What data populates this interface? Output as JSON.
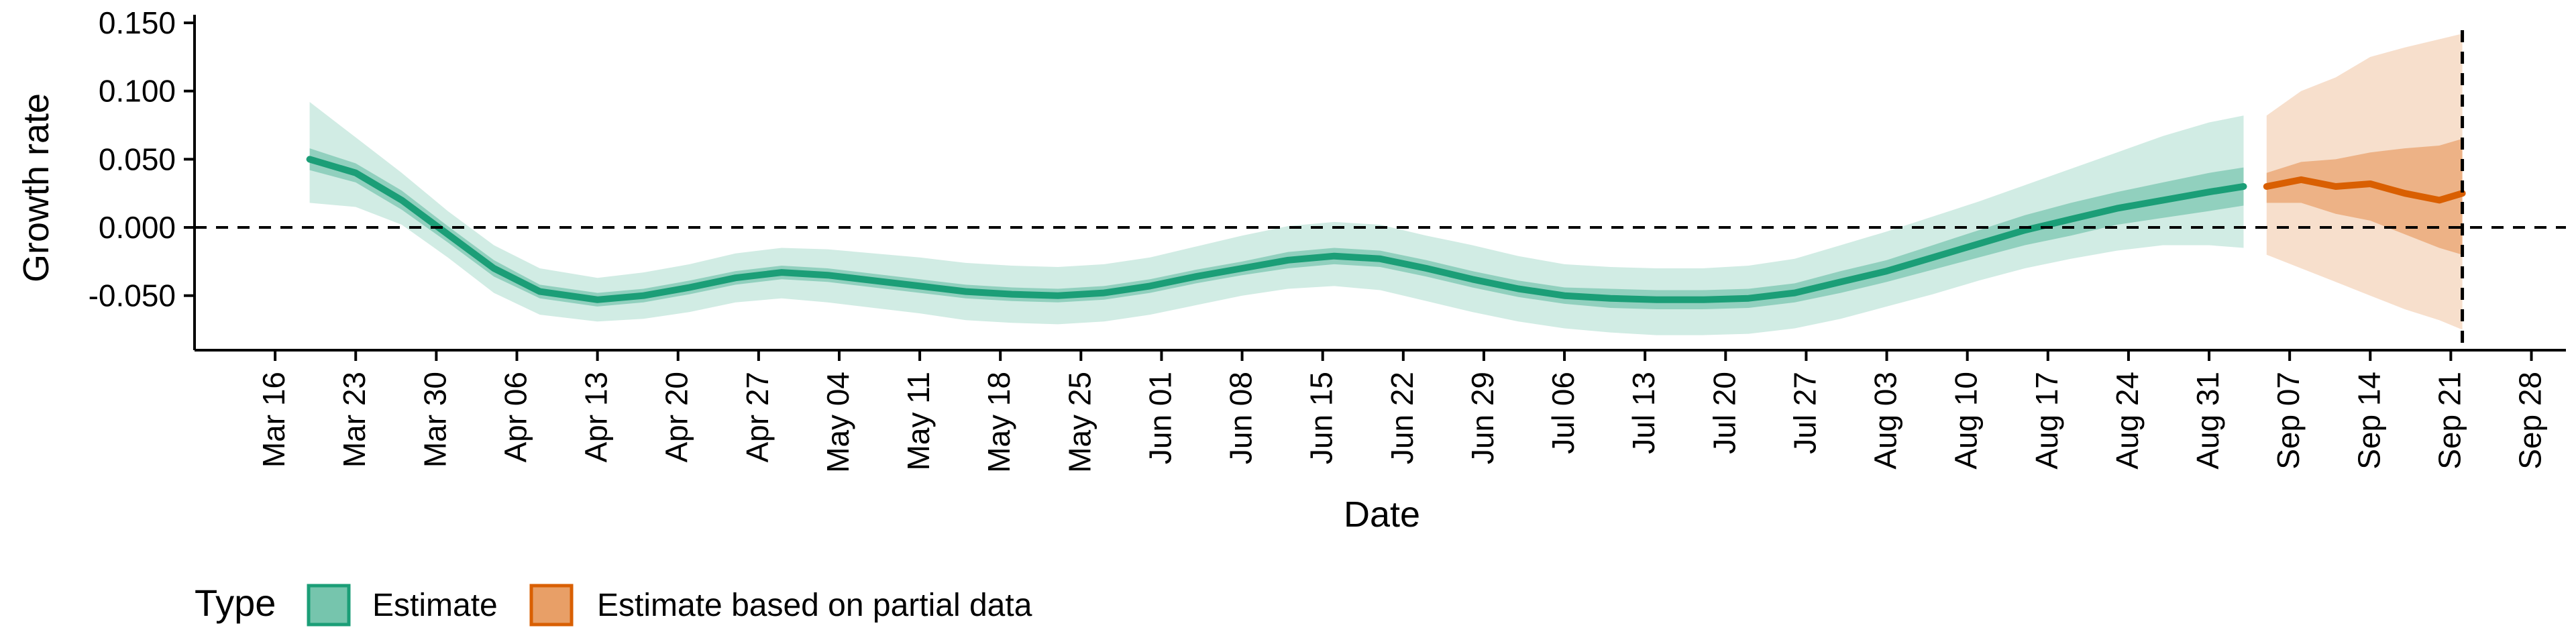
{
  "chart_data": {
    "type": "area",
    "xlabel": "Date",
    "ylabel": "Growth rate",
    "ylim": [
      -0.09,
      0.152
    ],
    "yticks": [
      -0.05,
      0.0,
      0.05,
      0.1,
      0.15
    ],
    "ytick_labels": [
      "-0.050",
      "0.000",
      "0.050",
      "0.100",
      "0.150"
    ],
    "xlim": [
      "2020-03-09",
      "2020-10-01"
    ],
    "xticks": [
      "2020-03-16",
      "2020-03-23",
      "2020-03-30",
      "2020-04-06",
      "2020-04-13",
      "2020-04-20",
      "2020-04-27",
      "2020-05-04",
      "2020-05-11",
      "2020-05-18",
      "2020-05-25",
      "2020-06-01",
      "2020-06-08",
      "2020-06-15",
      "2020-06-22",
      "2020-06-29",
      "2020-07-06",
      "2020-07-13",
      "2020-07-20",
      "2020-07-27",
      "2020-08-03",
      "2020-08-10",
      "2020-08-17",
      "2020-08-24",
      "2020-08-31",
      "2020-09-07",
      "2020-09-14",
      "2020-09-21",
      "2020-09-28"
    ],
    "xtick_labels": [
      "Mar 16",
      "Mar 23",
      "Mar 30",
      "Apr 06",
      "Apr 13",
      "Apr 20",
      "Apr 27",
      "May 04",
      "May 11",
      "May 18",
      "May 25",
      "Jun 01",
      "Jun 08",
      "Jun 15",
      "Jun 22",
      "Jun 29",
      "Jul 06",
      "Jul 13",
      "Jul 20",
      "Jul 27",
      "Aug 03",
      "Aug 10",
      "Aug 17",
      "Aug 24",
      "Aug 31",
      "Sep 07",
      "Sep 14",
      "Sep 21",
      "Sep 28"
    ],
    "reference_lines": {
      "horizontal_y": 0.0,
      "vertical_date": "2020-09-22"
    },
    "legend": {
      "title": "Type",
      "position": "bottom-left",
      "items": [
        {
          "label": "Estimate",
          "color": "#1b9e77"
        },
        {
          "label": "Estimate based on partial data",
          "color": "#d95f02"
        }
      ]
    },
    "series": [
      {
        "name": "Estimate",
        "color": "#1b9e77",
        "x": [
          "2020-03-19",
          "2020-03-23",
          "2020-03-27",
          "2020-03-31",
          "2020-04-04",
          "2020-04-08",
          "2020-04-13",
          "2020-04-17",
          "2020-04-21",
          "2020-04-25",
          "2020-04-29",
          "2020-05-03",
          "2020-05-07",
          "2020-05-11",
          "2020-05-15",
          "2020-05-19",
          "2020-05-23",
          "2020-05-27",
          "2020-05-31",
          "2020-06-04",
          "2020-06-08",
          "2020-06-12",
          "2020-06-16",
          "2020-06-20",
          "2020-06-24",
          "2020-06-28",
          "2020-07-02",
          "2020-07-06",
          "2020-07-10",
          "2020-07-14",
          "2020-07-18",
          "2020-07-22",
          "2020-07-26",
          "2020-07-30",
          "2020-08-03",
          "2020-08-07",
          "2020-08-11",
          "2020-08-15",
          "2020-08-19",
          "2020-08-23",
          "2020-08-27",
          "2020-08-31",
          "2020-09-03"
        ],
        "median": [
          0.05,
          0.04,
          0.02,
          -0.005,
          -0.03,
          -0.047,
          -0.053,
          -0.05,
          -0.044,
          -0.037,
          -0.033,
          -0.035,
          -0.039,
          -0.043,
          -0.047,
          -0.049,
          -0.05,
          -0.048,
          -0.043,
          -0.036,
          -0.03,
          -0.024,
          -0.021,
          -0.023,
          -0.03,
          -0.038,
          -0.045,
          -0.05,
          -0.052,
          -0.053,
          -0.053,
          -0.052,
          -0.048,
          -0.04,
          -0.032,
          -0.022,
          -0.012,
          -0.002,
          0.006,
          0.014,
          0.02,
          0.026,
          0.03
        ],
        "lower_50": [
          0.042,
          0.033,
          0.013,
          -0.011,
          -0.036,
          -0.052,
          -0.058,
          -0.055,
          -0.049,
          -0.042,
          -0.038,
          -0.04,
          -0.044,
          -0.048,
          -0.052,
          -0.054,
          -0.055,
          -0.053,
          -0.048,
          -0.041,
          -0.035,
          -0.03,
          -0.027,
          -0.029,
          -0.036,
          -0.044,
          -0.051,
          -0.056,
          -0.059,
          -0.06,
          -0.06,
          -0.059,
          -0.055,
          -0.048,
          -0.04,
          -0.031,
          -0.022,
          -0.013,
          -0.006,
          0.002,
          0.007,
          0.012,
          0.016
        ],
        "upper_50": [
          0.058,
          0.047,
          0.027,
          0.001,
          -0.024,
          -0.042,
          -0.048,
          -0.045,
          -0.039,
          -0.032,
          -0.028,
          -0.03,
          -0.034,
          -0.038,
          -0.042,
          -0.044,
          -0.045,
          -0.043,
          -0.038,
          -0.031,
          -0.025,
          -0.018,
          -0.015,
          -0.017,
          -0.024,
          -0.032,
          -0.039,
          -0.044,
          -0.045,
          -0.046,
          -0.046,
          -0.045,
          -0.041,
          -0.032,
          -0.024,
          -0.013,
          -0.002,
          0.009,
          0.018,
          0.026,
          0.033,
          0.04,
          0.044
        ],
        "lower_90": [
          0.018,
          0.015,
          0.002,
          -0.022,
          -0.048,
          -0.064,
          -0.069,
          -0.067,
          -0.062,
          -0.055,
          -0.052,
          -0.055,
          -0.059,
          -0.063,
          -0.068,
          -0.07,
          -0.071,
          -0.069,
          -0.064,
          -0.057,
          -0.05,
          -0.045,
          -0.043,
          -0.046,
          -0.054,
          -0.062,
          -0.069,
          -0.074,
          -0.077,
          -0.079,
          -0.079,
          -0.078,
          -0.074,
          -0.067,
          -0.058,
          -0.049,
          -0.039,
          -0.03,
          -0.023,
          -0.017,
          -0.013,
          -0.013,
          -0.015
        ],
        "upper_90": [
          0.092,
          0.066,
          0.04,
          0.012,
          -0.013,
          -0.03,
          -0.037,
          -0.033,
          -0.027,
          -0.019,
          -0.015,
          -0.016,
          -0.019,
          -0.022,
          -0.026,
          -0.028,
          -0.029,
          -0.027,
          -0.022,
          -0.014,
          -0.006,
          0.001,
          0.004,
          0.002,
          -0.006,
          -0.013,
          -0.021,
          -0.027,
          -0.029,
          -0.03,
          -0.03,
          -0.028,
          -0.023,
          -0.013,
          -0.003,
          0.008,
          0.019,
          0.031,
          0.043,
          0.055,
          0.067,
          0.077,
          0.082
        ]
      },
      {
        "name": "Estimate based on partial data",
        "color": "#d95f02",
        "x": [
          "2020-09-05",
          "2020-09-08",
          "2020-09-11",
          "2020-09-14",
          "2020-09-17",
          "2020-09-20",
          "2020-09-22"
        ],
        "median": [
          0.03,
          0.035,
          0.03,
          0.032,
          0.025,
          0.02,
          0.025
        ],
        "lower_50": [
          0.018,
          0.018,
          0.01,
          0.005,
          -0.005,
          -0.015,
          -0.02
        ],
        "upper_50": [
          0.04,
          0.048,
          0.05,
          0.055,
          0.058,
          0.06,
          0.065
        ],
        "lower_90": [
          -0.02,
          -0.03,
          -0.04,
          -0.05,
          -0.06,
          -0.068,
          -0.075
        ],
        "upper_90": [
          0.082,
          0.1,
          0.11,
          0.125,
          0.132,
          0.138,
          0.142
        ]
      }
    ]
  }
}
